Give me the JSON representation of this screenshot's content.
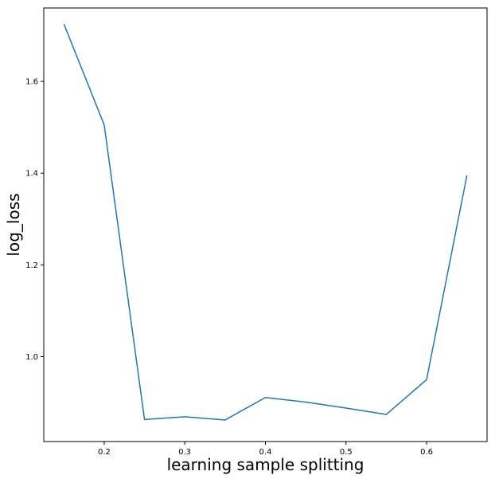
{
  "chart_data": {
    "type": "line",
    "title": "",
    "xlabel": "learning sample splitting",
    "ylabel": "log_loss",
    "xlim": [
      0.125,
      0.675
    ],
    "ylim": [
      0.815,
      1.76
    ],
    "x_ticks": [
      0.2,
      0.3,
      0.4,
      0.5,
      0.6
    ],
    "x_tick_labels": [
      "0.2",
      "0.3",
      "0.4",
      "0.5",
      "0.6"
    ],
    "y_ticks": [
      1.0,
      1.2,
      1.4,
      1.6
    ],
    "y_tick_labels": [
      "1.0",
      "1.2",
      "1.4",
      "1.6"
    ],
    "grid": false,
    "line_color": "#1f77b4",
    "series": [
      {
        "x": [
          0.15,
          0.2,
          0.25,
          0.3,
          0.35,
          0.4,
          0.45,
          0.5,
          0.55,
          0.6,
          0.65
        ],
        "values": [
          1.725,
          1.505,
          0.863,
          0.869,
          0.862,
          0.911,
          0.901,
          0.888,
          0.874,
          0.95,
          1.395
        ]
      }
    ]
  }
}
